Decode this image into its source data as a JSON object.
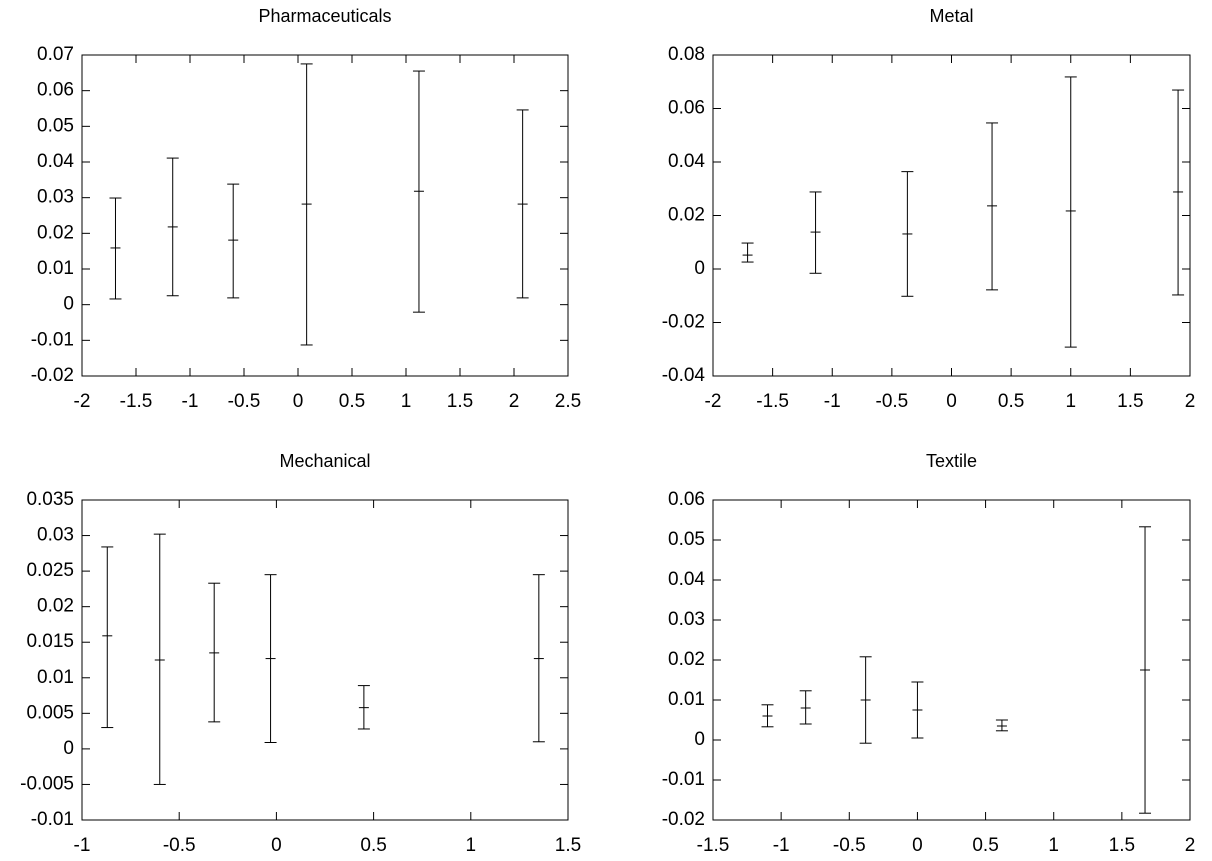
{
  "chart_data": [
    {
      "type": "errorbar",
      "title": "Pharmaceuticals",
      "color": "#000000",
      "x": [
        -1.69,
        -1.16,
        -0.6,
        0.08,
        1.12,
        2.08
      ],
      "values": [
        0.0159,
        0.0218,
        0.0181,
        0.0282,
        0.0318,
        0.0282
      ],
      "low": [
        0.0016,
        0.0025,
        0.0019,
        -0.0113,
        -0.0021,
        0.0019
      ],
      "high": [
        0.0299,
        0.0411,
        0.0338,
        0.0675,
        0.0655,
        0.0546
      ],
      "xlim": [
        -2,
        2.5
      ],
      "ylim": [
        -0.02,
        0.07
      ],
      "xticks": [
        -2,
        -1.5,
        -1,
        -0.5,
        0,
        0.5,
        1,
        1.5,
        2,
        2.5
      ],
      "yticks": [
        -0.02,
        -0.01,
        0,
        0.01,
        0.02,
        0.03,
        0.04,
        0.05,
        0.06,
        0.07
      ]
    },
    {
      "type": "errorbar",
      "title": "Metal",
      "color": "#000000",
      "x": [
        -1.71,
        -1.14,
        -0.37,
        0.34,
        1.0,
        1.9
      ],
      "values": [
        0.0052,
        0.0138,
        0.0131,
        0.0236,
        0.0217,
        0.0288
      ],
      "low": [
        0.0026,
        -0.0016,
        -0.0102,
        -0.0078,
        -0.0292,
        -0.0097
      ],
      "high": [
        0.0097,
        0.0288,
        0.0364,
        0.0546,
        0.0718,
        0.0669
      ],
      "xlim": [
        -2,
        2
      ],
      "ylim": [
        -0.04,
        0.08
      ],
      "xticks": [
        -2,
        -1.5,
        -1,
        -0.5,
        0,
        0.5,
        1,
        1.5,
        2
      ],
      "yticks": [
        -0.04,
        -0.02,
        0,
        0.02,
        0.04,
        0.06,
        0.08
      ]
    },
    {
      "type": "errorbar",
      "title": "Mechanical",
      "color": "#000000",
      "x": [
        -0.87,
        -0.6,
        -0.32,
        -0.03,
        0.45,
        1.35
      ],
      "values": [
        0.0159,
        0.0125,
        0.0135,
        0.0127,
        0.0058,
        0.0127
      ],
      "low": [
        0.003,
        -0.005,
        0.0038,
        0.0009,
        0.0028,
        0.001
      ],
      "high": [
        0.0284,
        0.0302,
        0.0233,
        0.0245,
        0.0089,
        0.0245
      ],
      "xlim": [
        -1,
        1.5
      ],
      "ylim": [
        -0.01,
        0.035
      ],
      "xticks": [
        -1,
        -0.5,
        0,
        0.5,
        1,
        1.5
      ],
      "yticks": [
        -0.01,
        -0.005,
        0,
        0.005,
        0.01,
        0.015,
        0.02,
        0.025,
        0.03,
        0.035
      ]
    },
    {
      "type": "errorbar",
      "title": "Textile",
      "color": "#000000",
      "x": [
        -1.1,
        -0.82,
        -0.38,
        0,
        0.62,
        1.67
      ],
      "values": [
        0.006,
        0.008,
        0.01,
        0.0075,
        0.0035,
        0.0175
      ],
      "low": [
        0.0033,
        0.004,
        -0.0008,
        0.0005,
        0.0023,
        -0.0183
      ],
      "high": [
        0.0088,
        0.0123,
        0.0208,
        0.0145,
        0.005,
        0.0533
      ],
      "xlim": [
        -1.5,
        2
      ],
      "ylim": [
        -0.02,
        0.06
      ],
      "xticks": [
        -1.5,
        -1,
        -0.5,
        0,
        0.5,
        1,
        1.5,
        2
      ],
      "yticks": [
        -0.02,
        -0.01,
        0,
        0.01,
        0.02,
        0.03,
        0.04,
        0.05,
        0.06
      ]
    }
  ]
}
